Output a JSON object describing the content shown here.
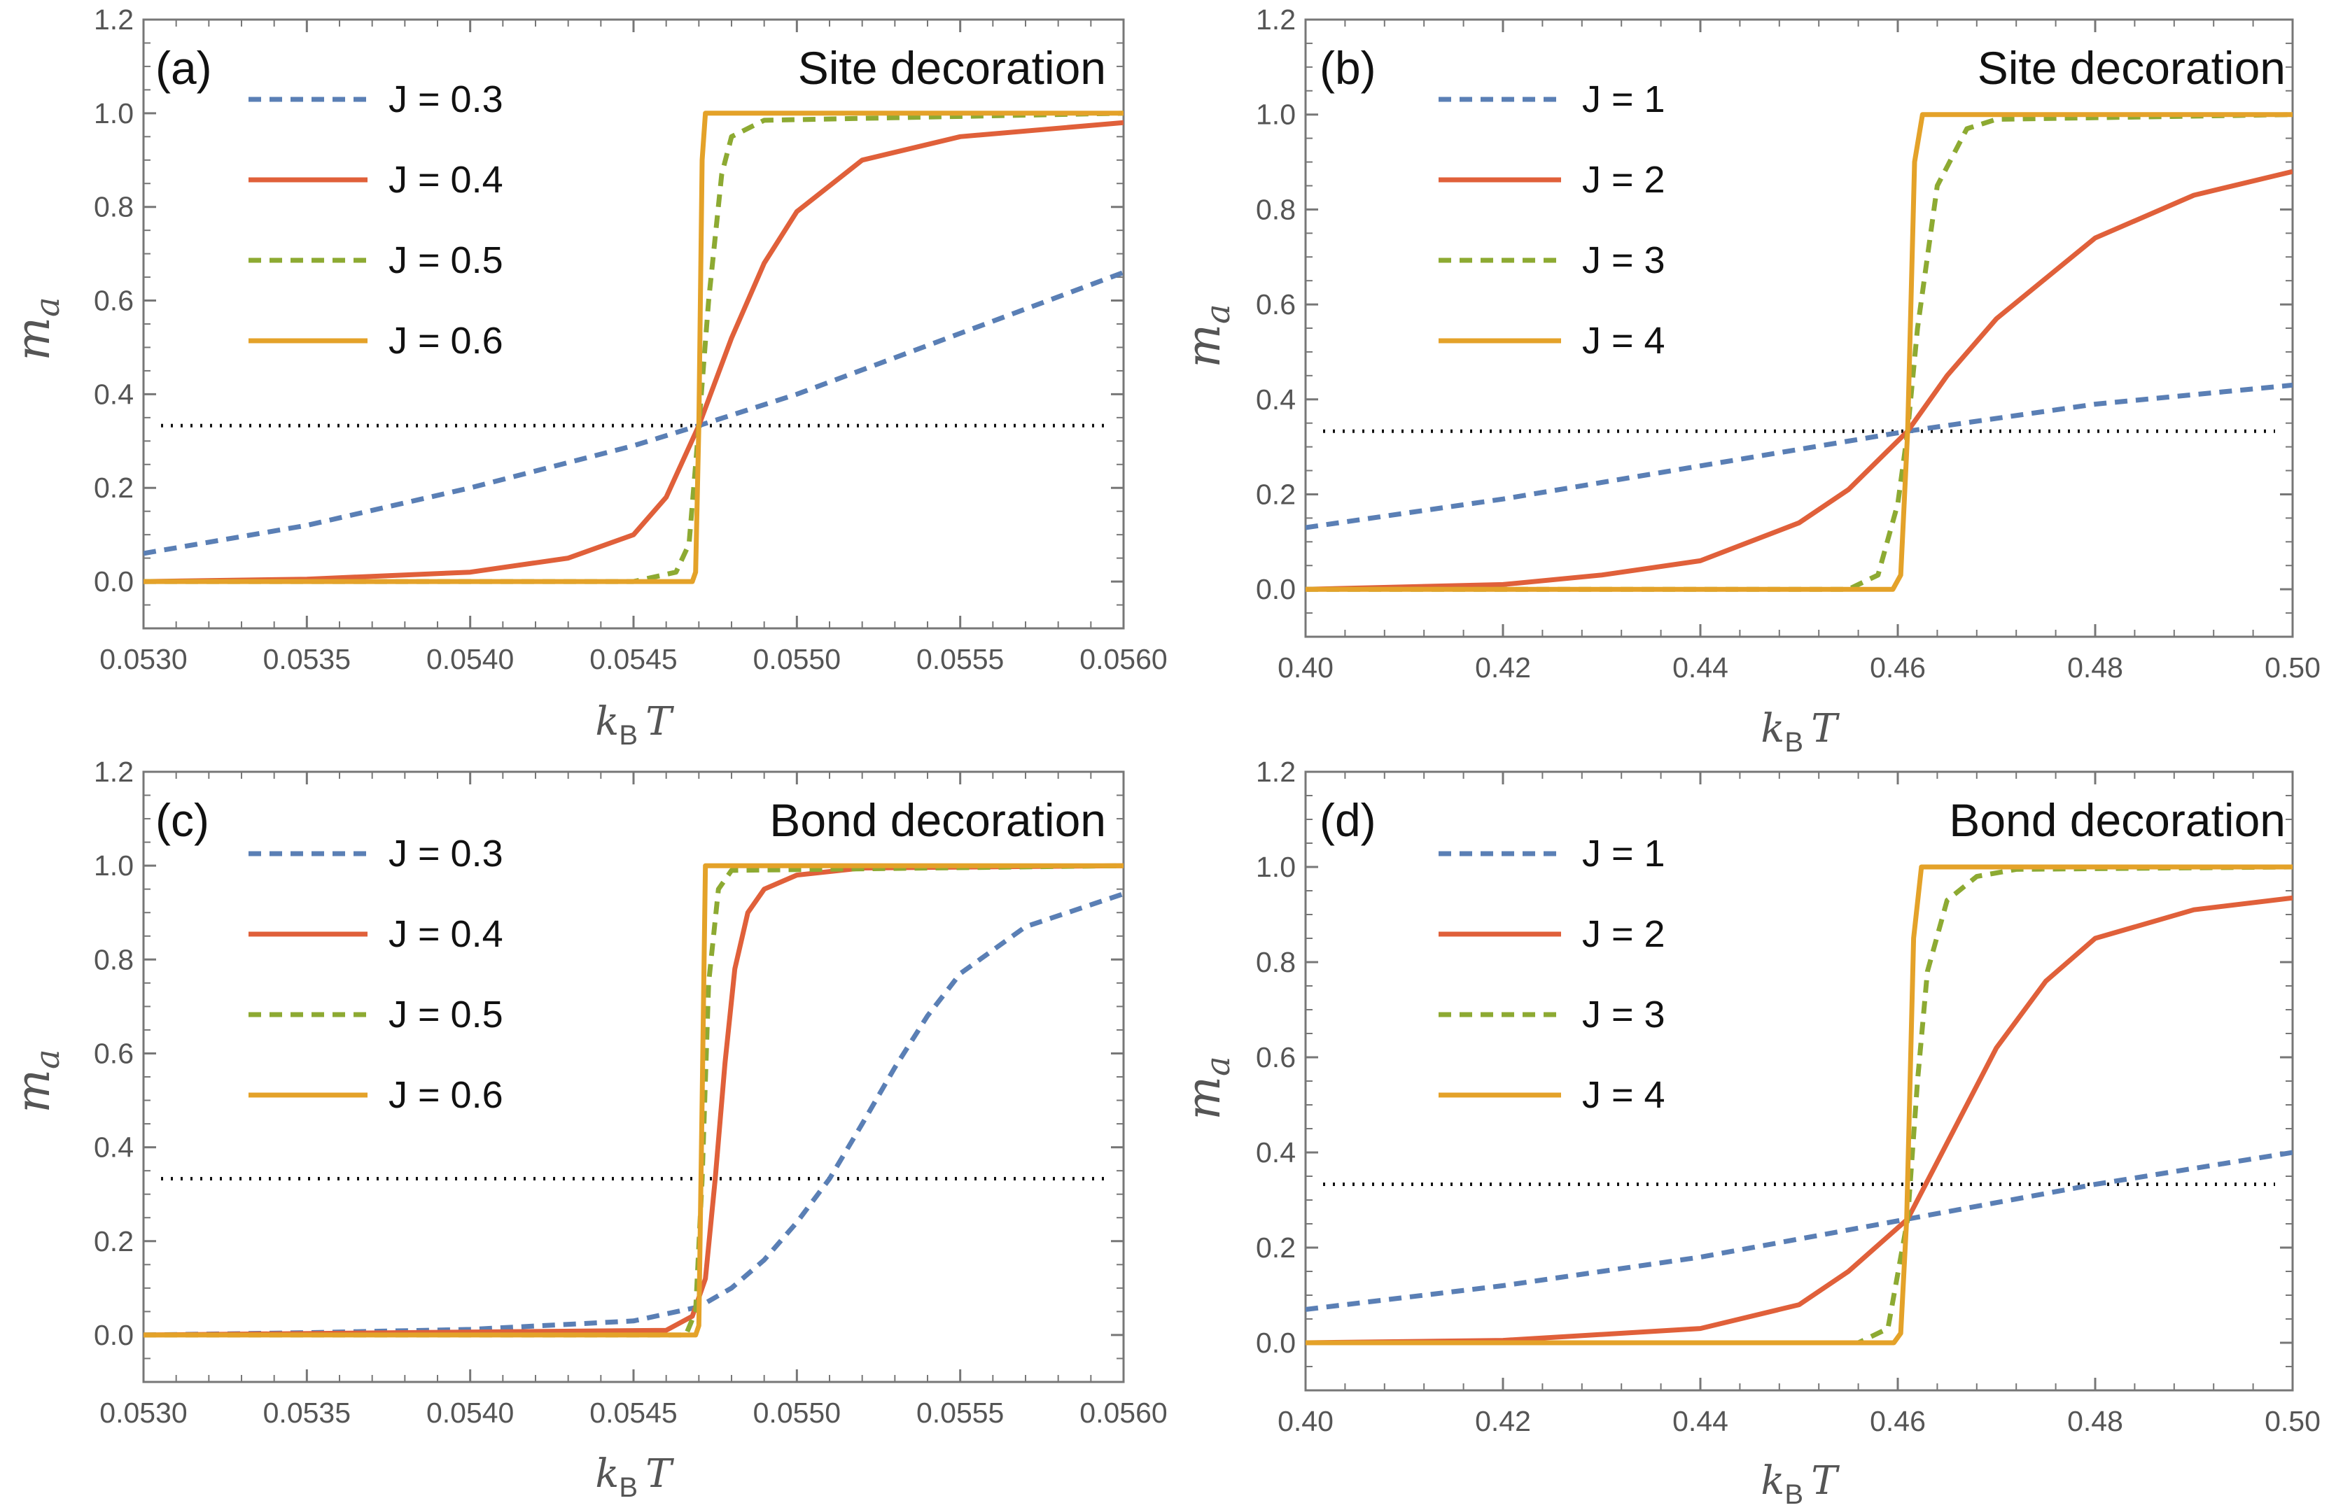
{
  "chart_data": [
    {
      "type": "line",
      "panel": "(a)",
      "title": "Site decoration",
      "xlabel": "k_B T",
      "ylabel": "m_a",
      "xlim": [
        0.053,
        0.056
      ],
      "ylim": [
        -0.1,
        1.2
      ],
      "xticks": [
        "0.0530",
        "0.0535",
        "0.0540",
        "0.0545",
        "0.0550",
        "0.0555",
        "0.0560"
      ],
      "yticks": [
        "0.0",
        "0.2",
        "0.4",
        "0.6",
        "0.8",
        "1.0",
        "1.2"
      ],
      "reference_line": {
        "y": 0.333,
        "style": "dotted"
      },
      "legend": [
        "J = 0.3",
        "J = 0.4",
        "J = 0.5",
        "J = 0.6"
      ],
      "series": [
        {
          "name": "J = 0.3",
          "style": "dashed",
          "color": "#5a7fb5",
          "x": [
            0.053,
            0.0535,
            0.054,
            0.0545,
            0.0547,
            0.055,
            0.0555,
            0.056
          ],
          "y": [
            0.06,
            0.12,
            0.2,
            0.29,
            0.333,
            0.4,
            0.53,
            0.66
          ]
        },
        {
          "name": "J = 0.4",
          "style": "solid",
          "color": "#e0603a",
          "x": [
            0.053,
            0.0535,
            0.054,
            0.0543,
            0.0545,
            0.0546,
            0.0547,
            0.0548,
            0.0549,
            0.055,
            0.0552,
            0.0555,
            0.056
          ],
          "y": [
            0.0,
            0.005,
            0.02,
            0.05,
            0.1,
            0.18,
            0.333,
            0.52,
            0.68,
            0.79,
            0.9,
            0.95,
            0.98
          ]
        },
        {
          "name": "J = 0.5",
          "style": "dashed",
          "color": "#8daa32",
          "x": [
            0.053,
            0.0545,
            0.05463,
            0.05467,
            0.0547,
            0.05473,
            0.05477,
            0.0548,
            0.0549,
            0.056
          ],
          "y": [
            0.0,
            0.0,
            0.02,
            0.08,
            0.333,
            0.6,
            0.87,
            0.95,
            0.985,
            1.0
          ]
        },
        {
          "name": "J = 0.6",
          "style": "solid",
          "color": "#e4a229",
          "x": [
            0.053,
            0.05468,
            0.05469,
            0.0547,
            0.05471,
            0.05472,
            0.056
          ],
          "y": [
            0.0,
            0.0,
            0.02,
            0.333,
            0.9,
            1.0,
            1.0
          ]
        }
      ]
    },
    {
      "type": "line",
      "panel": "(b)",
      "title": "Site decoration",
      "xlabel": "k_B T",
      "ylabel": "m_a",
      "xlim": [
        0.4,
        0.5
      ],
      "ylim": [
        -0.1,
        1.2
      ],
      "xticks": [
        "0.40",
        "0.42",
        "0.44",
        "0.46",
        "0.48",
        "0.50"
      ],
      "yticks": [
        "0.0",
        "0.2",
        "0.4",
        "0.6",
        "0.8",
        "1.0",
        "1.2"
      ],
      "reference_line": {
        "y": 0.333,
        "style": "dotted"
      },
      "legend": [
        "J = 1",
        "J = 2",
        "J = 3",
        "J = 4"
      ],
      "series": [
        {
          "name": "J = 1",
          "style": "dashed",
          "color": "#5a7fb5",
          "x": [
            0.4,
            0.42,
            0.44,
            0.461,
            0.48,
            0.5
          ],
          "y": [
            0.13,
            0.19,
            0.26,
            0.333,
            0.39,
            0.43
          ]
        },
        {
          "name": "J = 2",
          "style": "solid",
          "color": "#e0603a",
          "x": [
            0.4,
            0.42,
            0.43,
            0.44,
            0.45,
            0.455,
            0.461,
            0.465,
            0.47,
            0.48,
            0.49,
            0.5
          ],
          "y": [
            0.0,
            0.01,
            0.03,
            0.06,
            0.14,
            0.21,
            0.333,
            0.45,
            0.57,
            0.74,
            0.83,
            0.88
          ]
        },
        {
          "name": "J = 3",
          "style": "dashed",
          "color": "#8daa32",
          "x": [
            0.4,
            0.455,
            0.458,
            0.46,
            0.461,
            0.462,
            0.464,
            0.467,
            0.47,
            0.5
          ],
          "y": [
            0.0,
            0.0,
            0.03,
            0.18,
            0.333,
            0.55,
            0.85,
            0.97,
            0.99,
            1.0
          ]
        },
        {
          "name": "J = 4",
          "style": "solid",
          "color": "#e4a229",
          "x": [
            0.4,
            0.4595,
            0.4603,
            0.461,
            0.4617,
            0.4625,
            0.5
          ],
          "y": [
            0.0,
            0.0,
            0.03,
            0.333,
            0.9,
            1.0,
            1.0
          ]
        }
      ]
    },
    {
      "type": "line",
      "panel": "(c)",
      "title": "Bond decoration",
      "xlabel": "k_B T",
      "ylabel": "m_a",
      "xlim": [
        0.053,
        0.056
      ],
      "ylim": [
        -0.1,
        1.2
      ],
      "xticks": [
        "0.0530",
        "0.0535",
        "0.0540",
        "0.0545",
        "0.0550",
        "0.0555",
        "0.0560"
      ],
      "yticks": [
        "0.0",
        "0.2",
        "0.4",
        "0.6",
        "0.8",
        "1.0",
        "1.2"
      ],
      "reference_line": {
        "y": 0.333,
        "style": "dotted"
      },
      "legend": [
        "J = 0.3",
        "J = 0.4",
        "J = 0.5",
        "J = 0.6"
      ],
      "series": [
        {
          "name": "J = 0.3",
          "style": "dashed",
          "color": "#5a7fb5",
          "x": [
            0.053,
            0.0535,
            0.054,
            0.0545,
            0.0547,
            0.0548,
            0.0549,
            0.055,
            0.0551,
            0.0552,
            0.0553,
            0.0554,
            0.0555,
            0.0557,
            0.056
          ],
          "y": [
            0.0,
            0.005,
            0.012,
            0.03,
            0.06,
            0.1,
            0.16,
            0.24,
            0.333,
            0.45,
            0.57,
            0.68,
            0.77,
            0.87,
            0.94
          ]
        },
        {
          "name": "J = 0.4",
          "style": "solid",
          "color": "#e0603a",
          "x": [
            0.053,
            0.0546,
            0.05468,
            0.05472,
            0.05475,
            0.05478,
            0.05481,
            0.05485,
            0.0549,
            0.055,
            0.0552,
            0.056
          ],
          "y": [
            0.0,
            0.01,
            0.04,
            0.12,
            0.333,
            0.58,
            0.78,
            0.9,
            0.95,
            0.98,
            0.995,
            1.0
          ]
        },
        {
          "name": "J = 0.5",
          "style": "dashed",
          "color": "#8daa32",
          "x": [
            0.053,
            0.05466,
            0.05469,
            0.05471,
            0.05473,
            0.05476,
            0.0548,
            0.056
          ],
          "y": [
            0.0,
            0.0,
            0.05,
            0.333,
            0.75,
            0.95,
            0.99,
            1.0
          ]
        },
        {
          "name": "J = 0.6",
          "style": "solid",
          "color": "#e4a229",
          "x": [
            0.053,
            0.05469,
            0.0547,
            0.05471,
            0.05472,
            0.056
          ],
          "y": [
            0.0,
            0.0,
            0.02,
            0.5,
            1.0,
            1.0
          ]
        }
      ]
    },
    {
      "type": "line",
      "panel": "(d)",
      "title": "Bond decoration",
      "xlabel": "k_B T",
      "ylabel": "m_a",
      "xlim": [
        0.4,
        0.5
      ],
      "ylim": [
        -0.1,
        1.2
      ],
      "xticks": [
        "0.40",
        "0.42",
        "0.44",
        "0.46",
        "0.48",
        "0.50"
      ],
      "yticks": [
        "0.0",
        "0.2",
        "0.4",
        "0.6",
        "0.8",
        "1.0",
        "1.2"
      ],
      "reference_line": {
        "y": 0.333,
        "style": "dotted"
      },
      "legend": [
        "J = 1",
        "J = 2",
        "J = 3",
        "J = 4"
      ],
      "series": [
        {
          "name": "J = 1",
          "style": "dashed",
          "color": "#5a7fb5",
          "x": [
            0.4,
            0.42,
            0.44,
            0.461,
            0.48,
            0.5
          ],
          "y": [
            0.07,
            0.12,
            0.18,
            0.26,
            0.333,
            0.4
          ]
        },
        {
          "name": "J = 2",
          "style": "solid",
          "color": "#e0603a",
          "x": [
            0.4,
            0.42,
            0.44,
            0.45,
            0.455,
            0.461,
            0.465,
            0.47,
            0.475,
            0.48,
            0.49,
            0.5
          ],
          "y": [
            0.0,
            0.005,
            0.03,
            0.08,
            0.15,
            0.26,
            0.42,
            0.62,
            0.76,
            0.85,
            0.91,
            0.935
          ]
        },
        {
          "name": "J = 3",
          "style": "dashed",
          "color": "#8daa32",
          "x": [
            0.4,
            0.456,
            0.459,
            0.461,
            0.462,
            0.463,
            0.465,
            0.468,
            0.472,
            0.5
          ],
          "y": [
            0.0,
            0.0,
            0.03,
            0.26,
            0.55,
            0.78,
            0.93,
            0.98,
            0.995,
            1.0
          ]
        },
        {
          "name": "J = 4",
          "style": "solid",
          "color": "#e4a229",
          "x": [
            0.4,
            0.4596,
            0.4603,
            0.4609,
            0.4616,
            0.4624,
            0.5
          ],
          "y": [
            0.0,
            0.0,
            0.02,
            0.26,
            0.85,
            1.0,
            1.0
          ]
        }
      ]
    }
  ]
}
